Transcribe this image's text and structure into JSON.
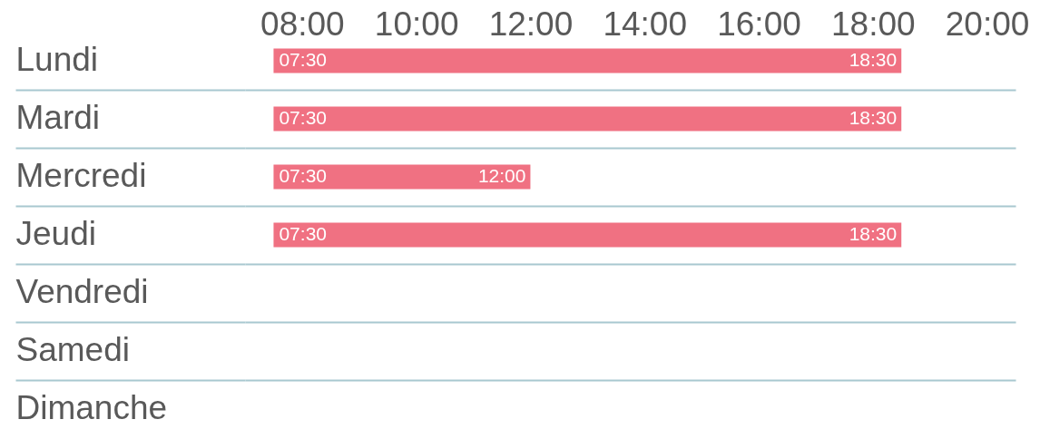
{
  "chart_data": {
    "type": "bar",
    "orientation": "horizontal",
    "categories": [
      "Lundi",
      "Mardi",
      "Mercredi",
      "Jeudi",
      "Vendredi",
      "Samedi",
      "Dimanche"
    ],
    "base": [
      7.5,
      7.5,
      7.5,
      7.5,
      null,
      null,
      null
    ],
    "values": [
      11,
      11,
      4.5,
      11,
      null,
      null,
      null
    ],
    "color": "#f07182",
    "xlim": [
      7,
      20.5
    ],
    "xticks": [
      {
        "value": 8,
        "label": "08:00"
      },
      {
        "value": 10,
        "label": "10:00"
      },
      {
        "value": 12,
        "label": "12:00"
      },
      {
        "value": 14,
        "label": "14:00"
      },
      {
        "value": 16,
        "label": "16:00"
      },
      {
        "value": 18,
        "label": "18:00"
      },
      {
        "value": 20,
        "label": "20:00"
      }
    ],
    "grid": "y",
    "annotations": [
      {
        "text": "07:30",
        "x": 7.5,
        "y": "Lundi"
      },
      {
        "text": "18:30",
        "x": 18.5,
        "y": "Lundi"
      },
      {
        "text": "07:30",
        "x": 7.5,
        "y": "Mardi"
      },
      {
        "text": "18:30",
        "x": 18.5,
        "y": "Mardi"
      },
      {
        "text": "07:30",
        "x": 7.5,
        "y": "Mercredi"
      },
      {
        "text": "12:00",
        "x": 12,
        "y": "Mercredi"
      },
      {
        "text": "07:30",
        "x": 7.5,
        "y": "Jeudi"
      },
      {
        "text": "18:30",
        "x": 18.5,
        "y": "Jeudi"
      }
    ]
  }
}
